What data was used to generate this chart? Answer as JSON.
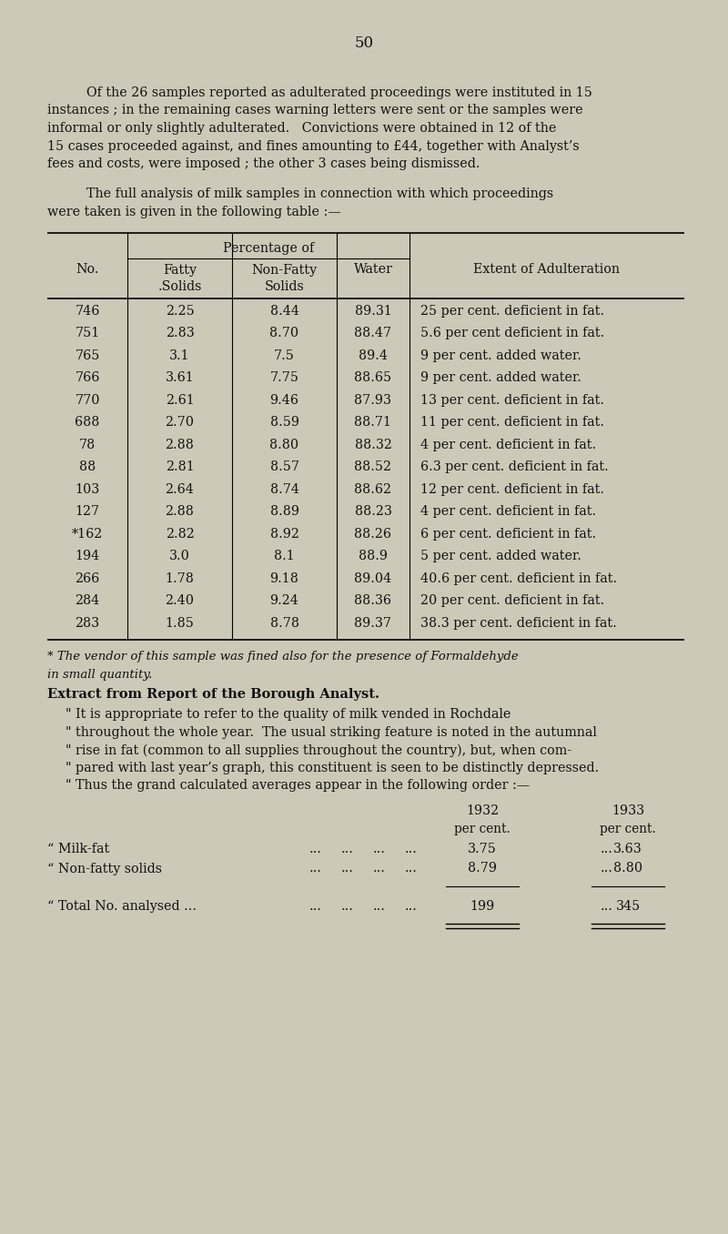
{
  "bg_color": "#cdc9b8",
  "page_number": "50",
  "para1_lines": [
    "Of the 26 samples reported as adulterated proceedings were instituted in 15",
    "instances ; in the remaining cases warning letters were sent or the samples were",
    "informal or only slightly adulterated.   Convictions were obtained in 12 of the",
    "15 cases proceeded against, and fines amounting to £44, together with Analyst’s",
    "fees and costs, were imposed ; the other 3 cases being dismissed."
  ],
  "para1_indent": [
    true,
    false,
    false,
    false,
    false
  ],
  "para2_lines": [
    "The full analysis of milk samples in connection with which proceedings",
    "were taken is given in the following table :—"
  ],
  "para2_indent": [
    true,
    false
  ],
  "table_rows": [
    [
      "746",
      "2.25",
      "8.44",
      "89.31",
      "25 per cent. deficient in fat."
    ],
    [
      "751",
      "2.83",
      "8.70",
      "88.47",
      "5.6 per cent deficient in fat."
    ],
    [
      "765",
      "3.1",
      "7.5",
      "89.4",
      "9 per cent. added water."
    ],
    [
      "766",
      "3.61",
      "7.75",
      "88.65",
      "9 per cent. added water."
    ],
    [
      "770",
      "2.61",
      "9.46",
      "87.93",
      "13 per cent. deficient in fat."
    ],
    [
      "688",
      "2.70",
      "8.59",
      "88.71",
      "11 per cent. deficient in fat."
    ],
    [
      "78",
      "2.88",
      "8.80",
      "88.32",
      "4 per cent. deficient in fat."
    ],
    [
      "88",
      "2.81",
      "8.57",
      "88.52",
      "6.3 per cent. deficient in fat."
    ],
    [
      "103",
      "2.64",
      "8.74",
      "88.62",
      "12 per cent. deficient in fat."
    ],
    [
      "127",
      "2.88",
      "8.89",
      "88.23",
      "4 per cent. deficient in fat."
    ],
    [
      "*162",
      "2.82",
      "8.92",
      "88.26",
      "6 per cent. deficient in fat."
    ],
    [
      "194",
      "3.0",
      "8.1",
      "88.9",
      "5 per cent. added water."
    ],
    [
      "266",
      "1.78",
      "9.18",
      "89.04",
      "40.6 per cent. deficient in fat."
    ],
    [
      "284",
      "2.40",
      "9.24",
      "88.36",
      "20 per cent. deficient in fat."
    ],
    [
      "283",
      "1.85",
      "8.78",
      "89.37",
      "38.3 per cent. deficient in fat."
    ]
  ],
  "footnote1": "* The vendor of this sample was fined also for the presence of Formaldehyde",
  "footnote2": "in small quantity.",
  "extract_heading": "Extract from Report of the Borough Analyst.",
  "extract_lines": [
    "\" It is appropriate to refer to the quality of milk vended in Rochdale",
    "\" throughout the whole year.  The usual striking feature is noted in the autumnal",
    "\" rise in fat (common to all supplies throughout the country), but, when com-",
    "\" pared with last year’s graph, this constituent is seen to be distinctly depressed.",
    "\" Thus the grand calculated averages appear in the following order :—"
  ],
  "sum_year1": "1932",
  "sum_year2": "1933",
  "sum_pct": "per cent.",
  "sum_labels": [
    "“ Milk-fat",
    "“ Non-fatty solids",
    "“ Total No. analysed ..."
  ],
  "sum_v1932": [
    "3.75",
    "8.79",
    "199"
  ],
  "sum_v1933": [
    "3.63",
    "8.80",
    "345"
  ],
  "font_family": "DejaVu Serif"
}
